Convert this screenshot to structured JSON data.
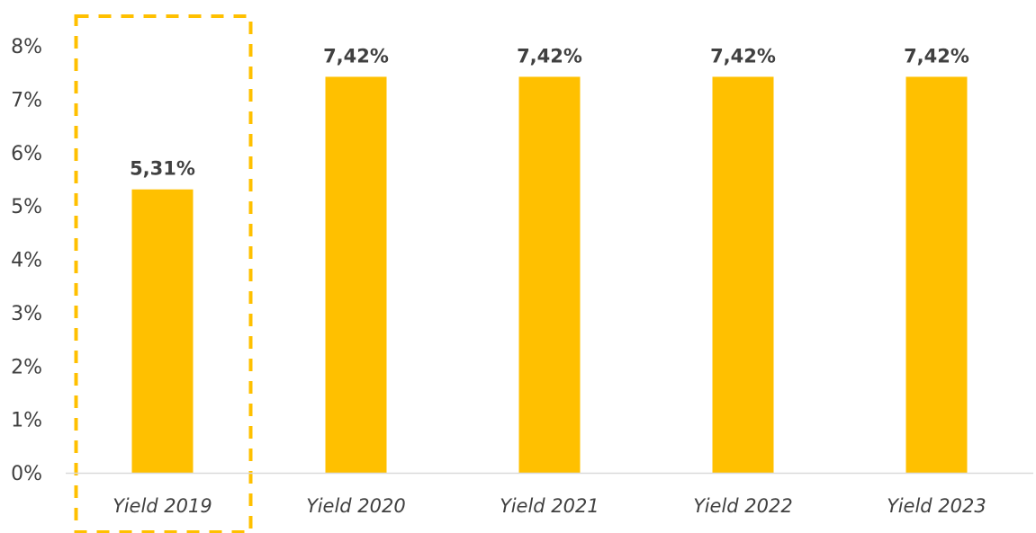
{
  "chart_data": {
    "type": "bar",
    "categories": [
      "Yield 2019",
      "Yield 2020",
      "Yield 2021",
      "Yield 2022",
      "Yield 2023"
    ],
    "values": [
      5.31,
      7.42,
      7.42,
      7.42,
      7.42
    ],
    "data_labels": [
      "5,31%",
      "7,42%",
      "7,42%",
      "7,42%",
      "7,42%"
    ],
    "y_ticks": [
      {
        "value": 0,
        "label": "0%"
      },
      {
        "value": 1,
        "label": "1%"
      },
      {
        "value": 2,
        "label": "2%"
      },
      {
        "value": 3,
        "label": "3%"
      },
      {
        "value": 4,
        "label": "4%"
      },
      {
        "value": 5,
        "label": "5%"
      },
      {
        "value": 6,
        "label": "6%"
      },
      {
        "value": 7,
        "label": "7%"
      },
      {
        "value": 8,
        "label": "8%"
      }
    ],
    "ylim": [
      0,
      8
    ],
    "title": "",
    "xlabel": "",
    "ylabel": "",
    "grid": false,
    "legend": "none",
    "highlighted_category": "Yield 2019",
    "colors": {
      "bar": "#FFC000",
      "highlight_border": "#FFC000",
      "axis_line": "#D9D9D9",
      "text": "#404040"
    }
  }
}
